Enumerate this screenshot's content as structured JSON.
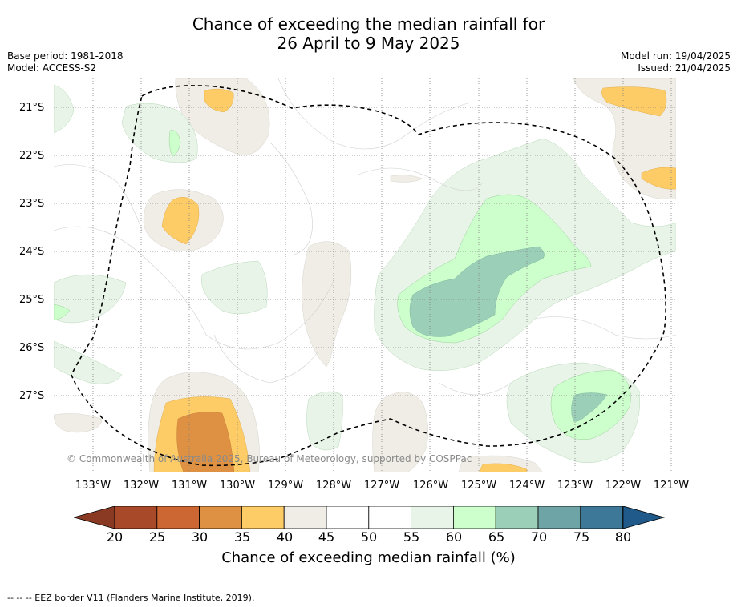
{
  "title_line1": "Chance of exceeding the median rainfall for",
  "title_line2": "26 April to 9 May 2025",
  "base_period": "Base period: 1981-2018",
  "model": "Model: ACCESS-S2",
  "model_run": "Model run: 19/04/2025",
  "issued": "Issued: 21/04/2025",
  "latitudes": [
    "21°S",
    "22°S",
    "23°S",
    "24°S",
    "25°S",
    "26°S",
    "27°S"
  ],
  "longitudes": [
    "133°W",
    "132°W",
    "131°W",
    "130°W",
    "129°W",
    "128°W",
    "127°W",
    "126°W",
    "125°W",
    "124°W",
    "123°W",
    "122°W",
    "121°W"
  ],
  "copyright": "© Commonwealth of Australia 2025, Bureau of Meteorology, supported by COSPPac",
  "colorbar": {
    "ticks": [
      "20",
      "25",
      "30",
      "35",
      "40",
      "45",
      "50",
      "55",
      "60",
      "65",
      "70",
      "75",
      "80"
    ],
    "colors": [
      "#a8492a",
      "#cc6633",
      "#df9143",
      "#fdcc66",
      "#f0ede7",
      "#ffffff",
      "#ffffff",
      "#e8f4e8",
      "#ccffcc",
      "#9ccfb8",
      "#6ea4a5",
      "#3e7899"
    ],
    "under_color": "#8a3a22",
    "over_color": "#1f5a8a",
    "label": "Chance of exceeding median rainfall (%)"
  },
  "legend_footer": "--  --  -- EEZ border V11 (Flanders Marine Institute, 2019)."
}
